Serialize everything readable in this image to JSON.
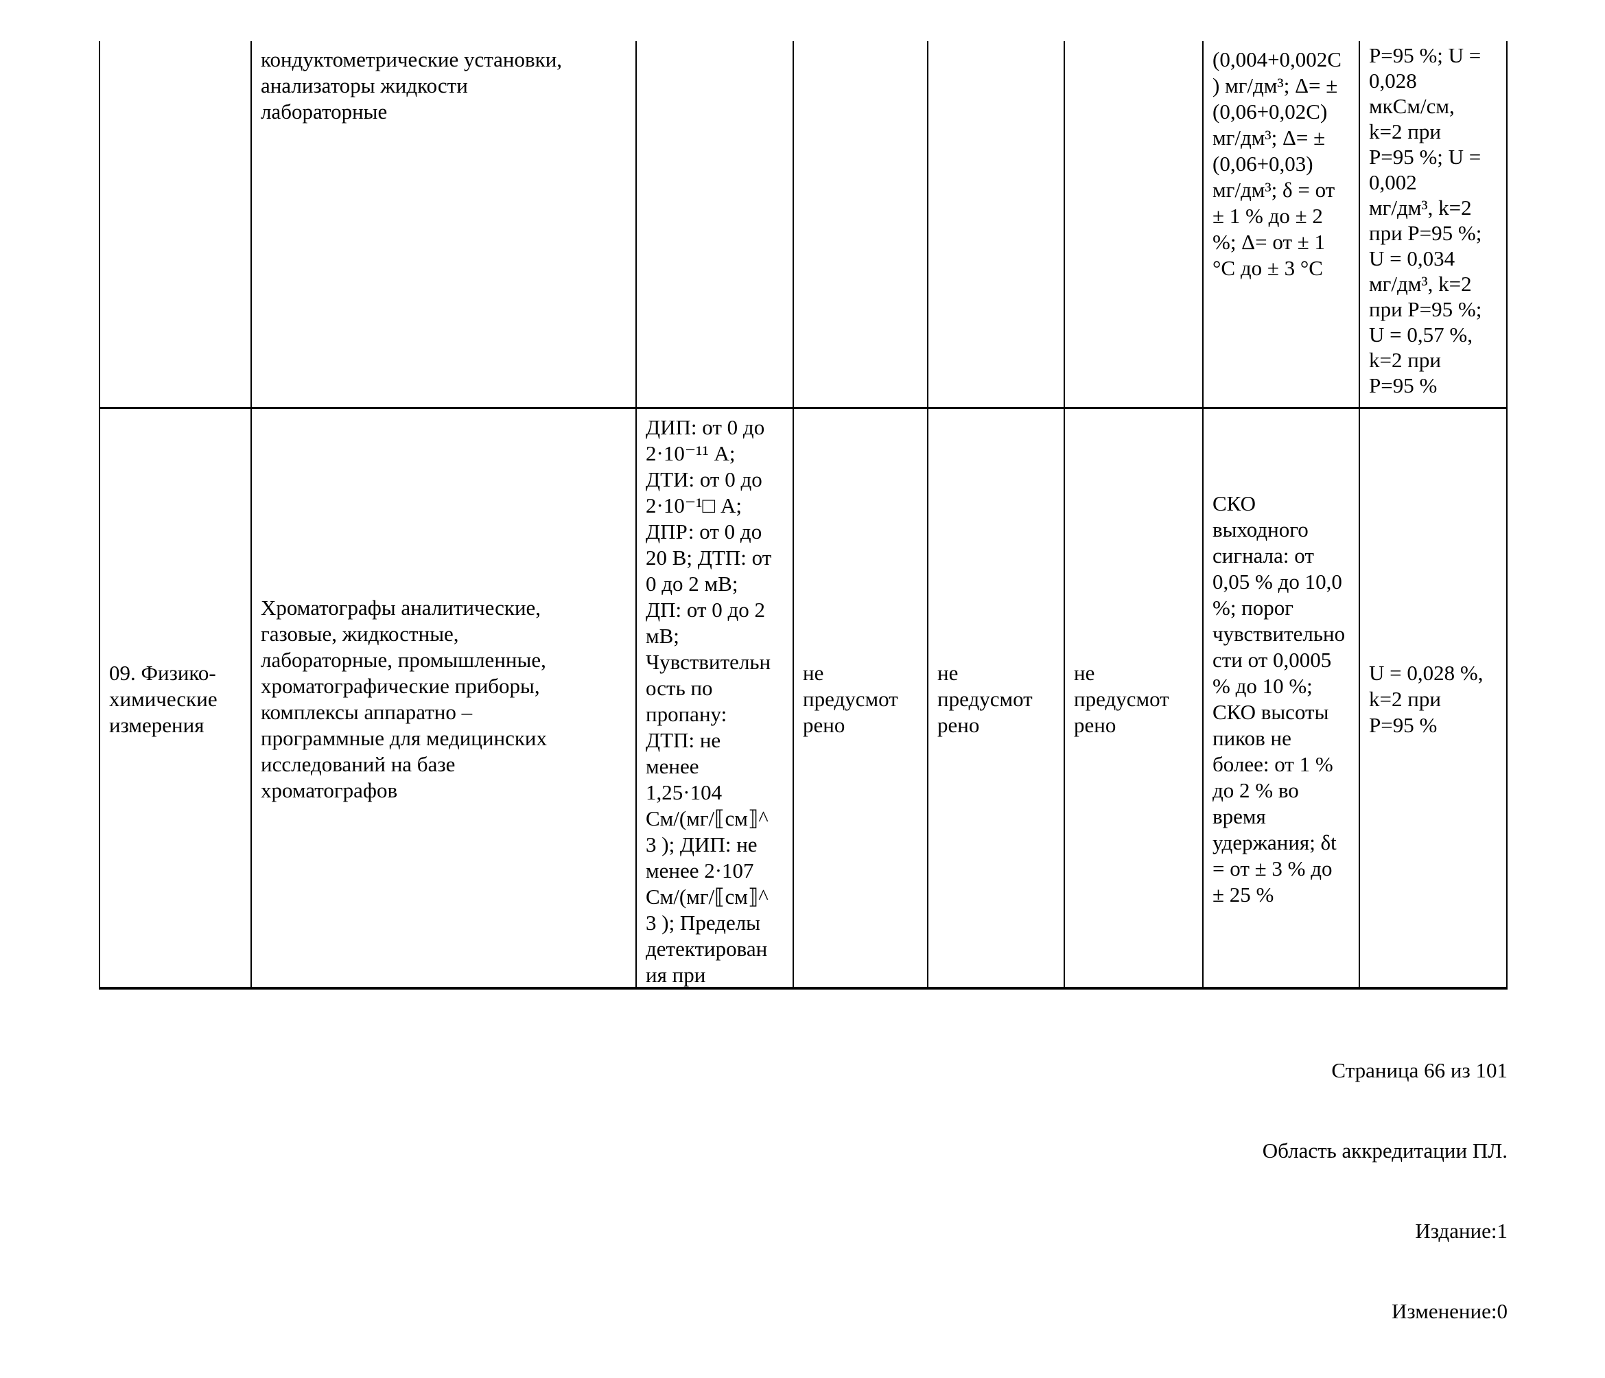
{
  "document": {
    "table": {
      "row1": {
        "col1": "",
        "col2": "кондуктометрические установки,\nанализаторы жидкости\nлабораторные",
        "col3": "",
        "col4": "",
        "col5": "",
        "col6": "",
        "col7": "(0,004+0,002С\n) мг/дм³; Δ= ±\n(0,06+0,02С)\nмг/дм³; Δ= ±\n(0,06+0,03)\nмг/дм³; δ = от\n± 1 % до ± 2\n%; Δ= от ± 1\n°С до ± 3 °С",
        "col8": "Р=95 %; U =\n0,028\nмкСм/см,\nk=2 при\nР=95 %; U =\n0,002\nмг/дм³, k=2\nпри Р=95 %;\nU = 0,034\nмг/дм³, k=2\nпри Р=95 %;\nU = 0,57 %,\nk=2 при\nР=95 %"
      },
      "row2": {
        "col1": "09. Физико-\nхимические\nизмерения",
        "col2": "Хроматографы аналитические,\nгазовые, жидкостные,\nлабораторные, промышленные,\nхроматографические приборы,\nкомплексы аппаратно –\nпрограммные для медицинских\nисследований на базе\nхроматографов",
        "col3": "ДИП: от 0 до\n2·10⁻¹¹ А;\nДТИ: от 0 до\n2·10⁻¹□ А;\nДПР: от 0 до\n20 В; ДТП: от\n0 до 2 мВ;\nДП: от 0 до 2\nмВ;\nЧувствительн\nость по\nпропану:\nДТП: не\nменее\n1,25·104\nСм/(мг/⟦см⟧^\n3 ); ДИП: не\nменее 2·107\nСм/(мг/⟦см⟧^\n3 ); Пределы\nдетектирован\nия при",
        "col4": "не\nпредусмот\nрено",
        "col5": "не\nпредусмот\nрено",
        "col6": "не\nпредусмот\nрено",
        "col7": "СКО\nвыходного\nсигнала: от\n0,05 % до 10,0\n%; порог\nчувствительно\nсти от 0,0005\n% до 10 %;\nСКО высоты\nпиков не\nболее: от 1 %\nдо 2 % во\nвремя\nудержания; δt\n= от ± 3 % до\n± 25 %",
        "col8": "U = 0,028 %,\nk=2 при\nР=95 %"
      }
    },
    "footer": {
      "page": "Страница 66 из 101",
      "scope": "Область аккредитации ПЛ.",
      "edition": "Издание:1",
      "revision": "Изменение:0"
    }
  }
}
